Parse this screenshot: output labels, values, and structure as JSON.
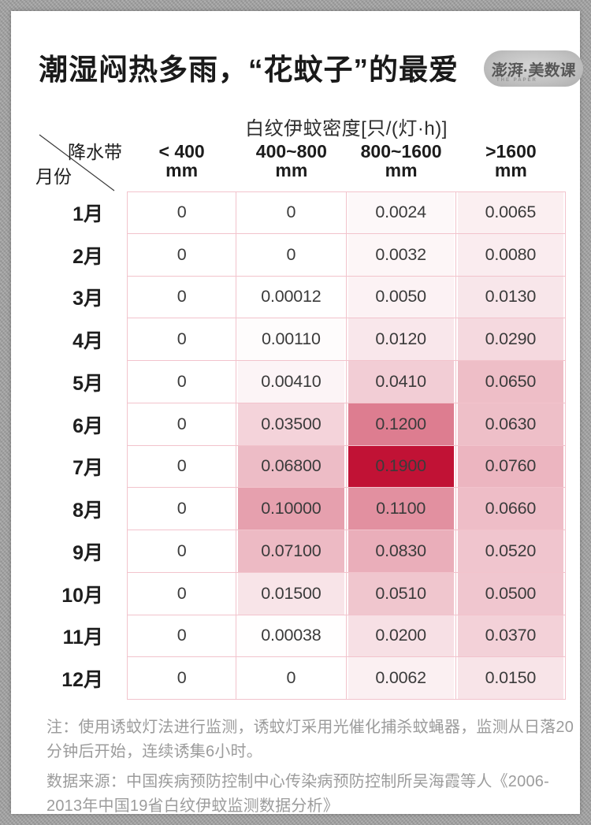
{
  "header": {
    "logo_text": "澎湃·美数课",
    "logo_sub": "THE PAPER"
  },
  "chart_data": {
    "type": "heatmap",
    "title": "潮湿闷热多雨，“花蚊子”的最爱",
    "unit_label": "白纹伊蚊密度[只/(灯·h)]",
    "corner": {
      "col_label": "降水带",
      "row_label": "月份"
    },
    "columns": [
      {
        "range": "< 400",
        "unit": "mm"
      },
      {
        "range": "400~800",
        "unit": "mm"
      },
      {
        "range": "800~1600",
        "unit": "mm"
      },
      {
        "range": ">1600",
        "unit": "mm"
      }
    ],
    "rows": [
      "1月",
      "2月",
      "3月",
      "4月",
      "5月",
      "6月",
      "7月",
      "8月",
      "9月",
      "10月",
      "11月",
      "12月"
    ],
    "values": [
      [
        "0",
        "0",
        "0.0024",
        "0.0065"
      ],
      [
        "0",
        "0",
        "0.0032",
        "0.0080"
      ],
      [
        "0",
        "0.00012",
        "0.0050",
        "0.0130"
      ],
      [
        "0",
        "0.00110",
        "0.0120",
        "0.0290"
      ],
      [
        "0",
        "0.00410",
        "0.0410",
        "0.0650"
      ],
      [
        "0",
        "0.03500",
        "0.1200",
        "0.0630"
      ],
      [
        "0",
        "0.06800",
        "0.1900",
        "0.0760"
      ],
      [
        "0",
        "0.10000",
        "0.1100",
        "0.0660"
      ],
      [
        "0",
        "0.07100",
        "0.0830",
        "0.0520"
      ],
      [
        "0",
        "0.01500",
        "0.0510",
        "0.0500"
      ],
      [
        "0",
        "0.00038",
        "0.0200",
        "0.0370"
      ],
      [
        "0",
        "0",
        "0.0062",
        "0.0150"
      ]
    ],
    "value_range": [
      0,
      0.19
    ],
    "colors": {
      "heat_min": "#ffffff",
      "heat_max": "#c11235",
      "grid": "#f2c3cc"
    },
    "color_anchors": [
      [
        0,
        0
      ],
      [
        0.0024,
        0.03
      ],
      [
        0.005,
        0.055
      ],
      [
        0.008,
        0.08
      ],
      [
        0.013,
        0.105
      ],
      [
        0.02,
        0.13
      ],
      [
        0.029,
        0.16
      ],
      [
        0.041,
        0.21
      ],
      [
        0.05,
        0.24
      ],
      [
        0.063,
        0.27
      ],
      [
        0.071,
        0.29
      ],
      [
        0.083,
        0.34
      ],
      [
        0.1,
        0.4
      ],
      [
        0.11,
        0.47
      ],
      [
        0.12,
        0.55
      ],
      [
        0.19,
        1
      ]
    ],
    "legend_position": "none",
    "grid_on": true
  },
  "notes": {
    "method": "注：使用诱蚊灯法进行监测，诱蚊灯采用光催化捕杀蚊蝇器，监测从日落20分钟后开始，连续诱集6小时。",
    "source": "数据来源：中国疾病预防控制中心传染病预防控制所吴海霞等人《2006-2013年中国19省白纹伊蚊监测数据分析》"
  }
}
